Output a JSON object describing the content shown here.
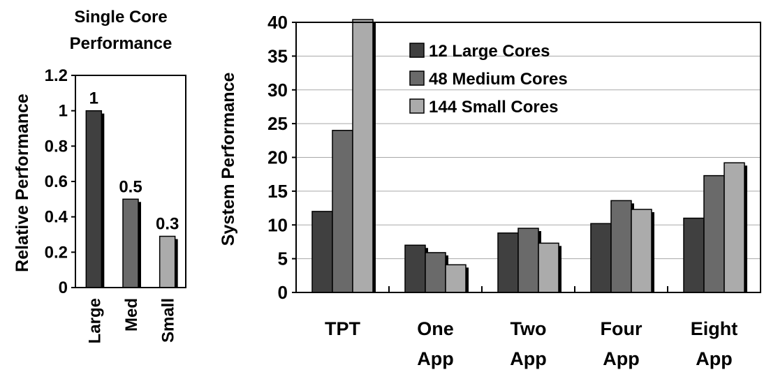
{
  "chart_data": [
    {
      "type": "bar",
      "title_lines": [
        "Single Core",
        "Performance"
      ],
      "ylabel": "Relative Performance",
      "xlabel": "",
      "categories": [
        "Large",
        "Med",
        "Small"
      ],
      "values": [
        1,
        0.5,
        0.29
      ],
      "data_labels": [
        "1",
        "0.5",
        "0.3"
      ],
      "colors": [
        "#404040",
        "#6a6a6a",
        "#ababab"
      ],
      "ylim": [
        0,
        1.2
      ],
      "yticks": [
        "0",
        "0.2",
        "0.4",
        "0.6",
        "0.8",
        "1",
        "1.2"
      ],
      "grid": false,
      "legend": "none"
    },
    {
      "type": "bar",
      "title": "",
      "ylabel": "System Performance",
      "xlabel": "",
      "categories": [
        [
          "TPT"
        ],
        [
          "One",
          "App"
        ],
        [
          "Two",
          "App"
        ],
        [
          "Four",
          "App"
        ],
        [
          "Eight",
          "App"
        ]
      ],
      "series": [
        {
          "name": "12 Large Cores",
          "color": "#404040",
          "values": [
            12,
            7,
            8.8,
            10.2,
            11
          ]
        },
        {
          "name": "48 Medium Cores",
          "color": "#6a6a6a",
          "values": [
            24,
            5.9,
            9.5,
            13.6,
            17.3
          ]
        },
        {
          "name": "144 Small Cores",
          "color": "#ababab",
          "values": [
            40.5,
            4.1,
            7.3,
            12.3,
            19.2
          ]
        }
      ],
      "ylim": [
        0,
        40
      ],
      "yticks": [
        "0",
        "5",
        "10",
        "15",
        "20",
        "25",
        "30",
        "35",
        "40"
      ],
      "grid": true,
      "legend": "top-center"
    }
  ]
}
